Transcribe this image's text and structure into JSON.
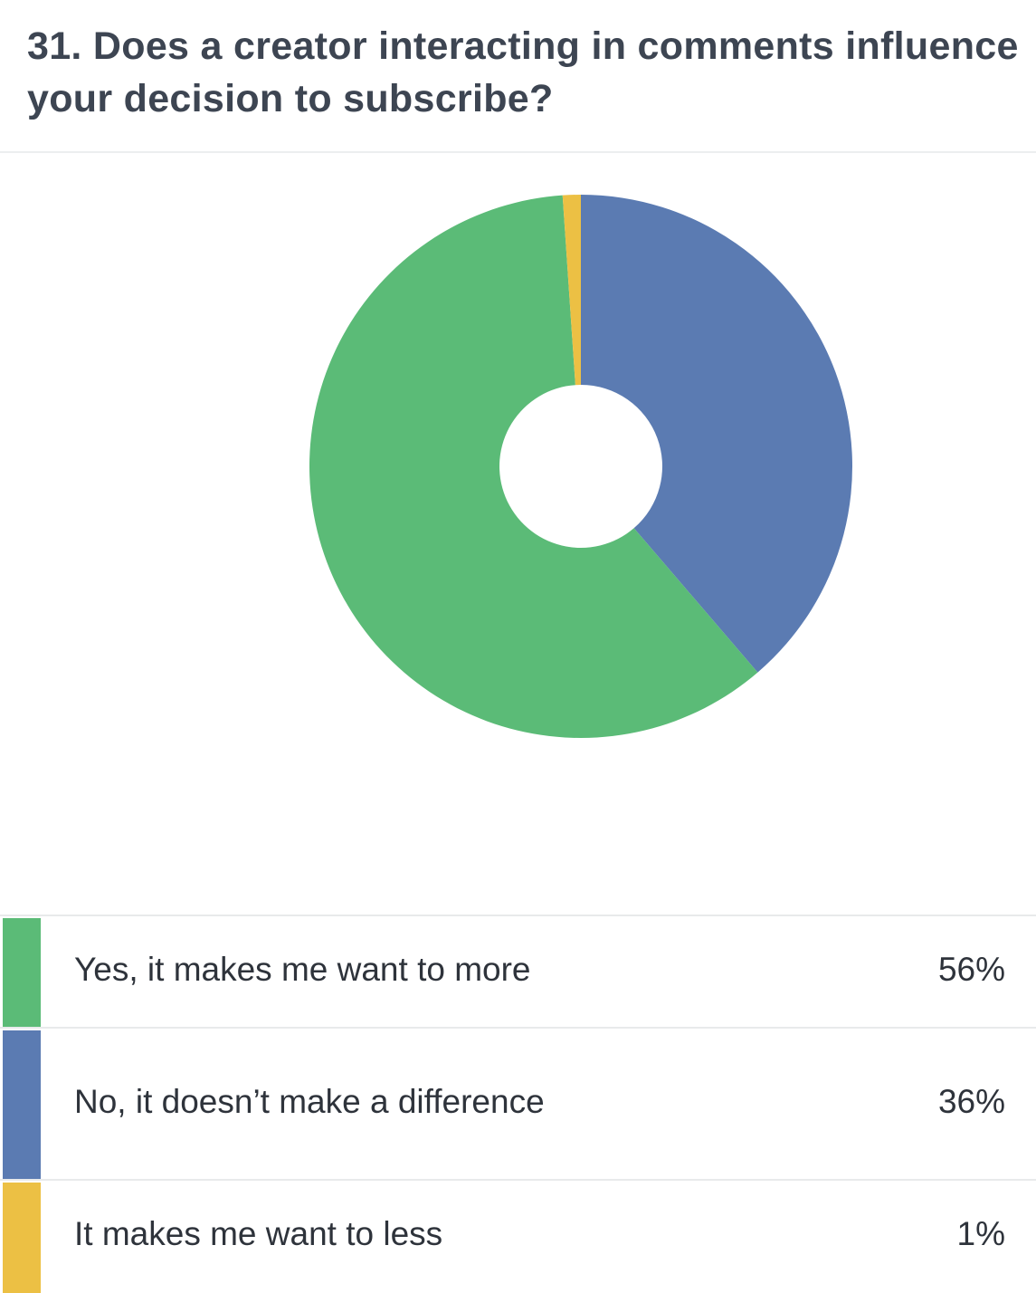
{
  "chart_data": {
    "type": "pie",
    "donut": true,
    "title": "31. Does a creator interacting in comments influence your decision to subscribe?",
    "categories": [
      "Yes, it makes me want to more",
      "No, it doesn’t make a difference",
      "It makes me want to less"
    ],
    "values": [
      56,
      36,
      1
    ],
    "value_labels": [
      "56%",
      "36%",
      "1%"
    ],
    "colors": [
      "#5bbb77",
      "#5b7bb2",
      "#ecc044"
    ]
  }
}
